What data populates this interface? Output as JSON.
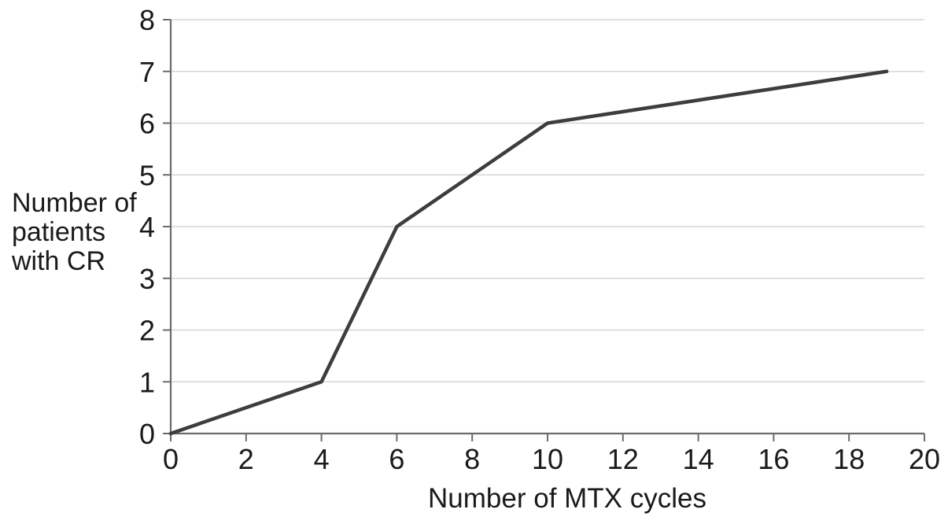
{
  "chart_data": {
    "type": "line",
    "title": "",
    "xlabel": "Number of MTX cycles",
    "ylabel": "Number of patients with CR",
    "ylabel_lines": [
      "Number of",
      "patients",
      "with CR"
    ],
    "points": [
      [
        0,
        0
      ],
      [
        4,
        1
      ],
      [
        6,
        4
      ],
      [
        10,
        6
      ],
      [
        19,
        7
      ]
    ],
    "x_ticks": [
      0,
      2,
      4,
      6,
      8,
      10,
      12,
      14,
      16,
      18,
      20
    ],
    "y_ticks": [
      0,
      1,
      2,
      3,
      4,
      5,
      6,
      7,
      8
    ],
    "xlim": [
      0,
      20
    ],
    "ylim": [
      0,
      8
    ],
    "grid": "horizontal",
    "legend": "none",
    "colors": {
      "line": "#3d3d3d",
      "gridline": "#d6d6d6",
      "axis": "#6b6b6b",
      "text": "#1a1a1a",
      "background": "#ffffff"
    }
  }
}
